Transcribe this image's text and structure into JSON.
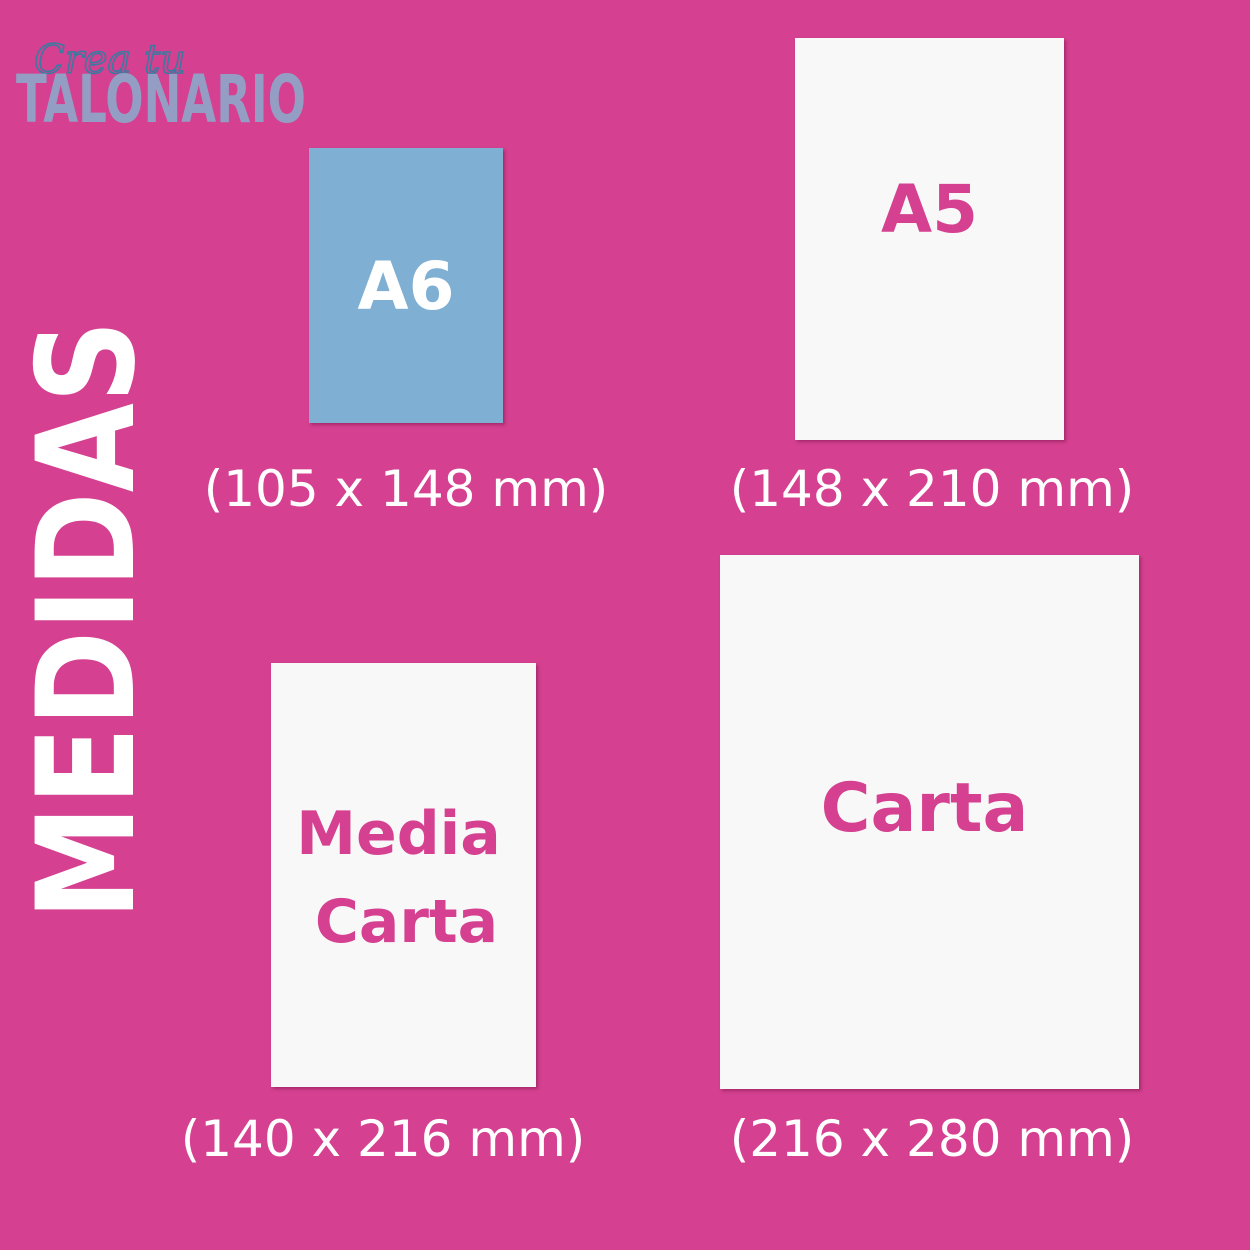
{
  "logo": {
    "script": "Crea tu",
    "wordmark": "TALONARIO"
  },
  "title": "MEDIDAS",
  "colors": {
    "background": "#d54090",
    "accent": "#d54090",
    "a6_card": "#7fb0d3",
    "card": "#f8f8f8"
  },
  "sizes": [
    {
      "label": "A6",
      "dimensions": "(105 x 148 mm)"
    },
    {
      "label": "A5",
      "dimensions": "(148 x 210 mm)"
    },
    {
      "label_line1": "Media",
      "label_line2": "Carta",
      "dimensions": "(140 x 216 mm)"
    },
    {
      "label": "Carta",
      "dimensions": "(216 x 280 mm)"
    }
  ]
}
